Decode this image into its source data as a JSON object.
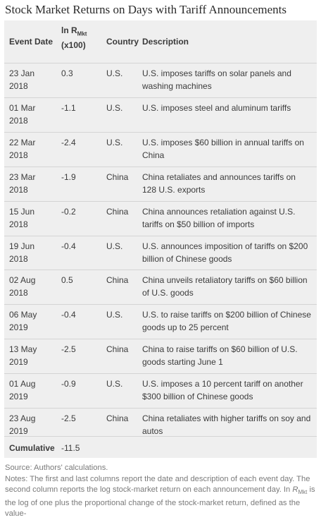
{
  "title": "Stock Market Returns on Days with Tariff Announcements",
  "headers": {
    "event_date": "Event Date",
    "return_prefix": "ln R",
    "return_sub": "Mkt",
    "return_unit": "(x100)",
    "country": "Country",
    "description": "Description"
  },
  "rows": [
    {
      "date1": "23 Jan",
      "date2": "2018",
      "ret": "0.3",
      "country": "U.S.",
      "desc": "U.S. imposes tariffs on solar panels and washing machines"
    },
    {
      "date1": "01 Mar",
      "date2": "2018",
      "ret": "-1.1",
      "country": "U.S.",
      "desc": "U.S. imposes steel and aluminum tariffs"
    },
    {
      "date1": "22 Mar",
      "date2": "2018",
      "ret": "-2.4",
      "country": "U.S.",
      "desc": "U.S. imposes $60 billion in annual tariffs on China"
    },
    {
      "date1": "23 Mar",
      "date2": "2018",
      "ret": "-1.9",
      "country": "China",
      "desc": "China retaliates and announces tariffs on 128 U.S. exports"
    },
    {
      "date1": "15 Jun",
      "date2": "2018",
      "ret": "-0.2",
      "country": "China",
      "desc": "China announces retaliation against U.S. tariffs on $50 billion of imports"
    },
    {
      "date1": "19 Jun",
      "date2": "2018",
      "ret": "-0.4",
      "country": "U.S.",
      "desc": "U.S. announces imposition of tariffs on $200 billion of Chinese goods"
    },
    {
      "date1": "02 Aug",
      "date2": "2018",
      "ret": "0.5",
      "country": "China",
      "desc": "China unveils retaliatory tariffs on $60 billion of U.S. goods"
    },
    {
      "date1": "06 May",
      "date2": "2019",
      "ret": "-0.4",
      "country": "U.S.",
      "desc": "U.S. to raise tariffs on $200 billion of Chinese goods up to 25 percent"
    },
    {
      "date1": "13 May",
      "date2": "2019",
      "ret": "-2.5",
      "country": "China",
      "desc": "China to raise tariffs on $60 billion of U.S. goods starting June 1"
    },
    {
      "date1": "01 Aug",
      "date2": "2019",
      "ret": "-0.9",
      "country": "U.S.",
      "desc": "U.S. imposes a 10 percent tariff on another $300 billion of Chinese goods"
    },
    {
      "date1": "23 Aug",
      "date2": "2019",
      "ret": "-2.5",
      "country": "China",
      "desc": "China retaliates with higher tariffs on soy and autos"
    }
  ],
  "cumulative": {
    "label": "Cumulative",
    "value": "-11.5"
  },
  "notes": {
    "source": "Source: Authors' calculations.",
    "notes_text_1": "Notes: The first and last columns report the date and description of each event day. The second column reports the log stock-market return on each announcement day. In ",
    "notes_r": "R",
    "notes_sub": "Mkt",
    "notes_text_2": " is the log of one plus the proportional change of the stock-market return, defined as the value-"
  }
}
